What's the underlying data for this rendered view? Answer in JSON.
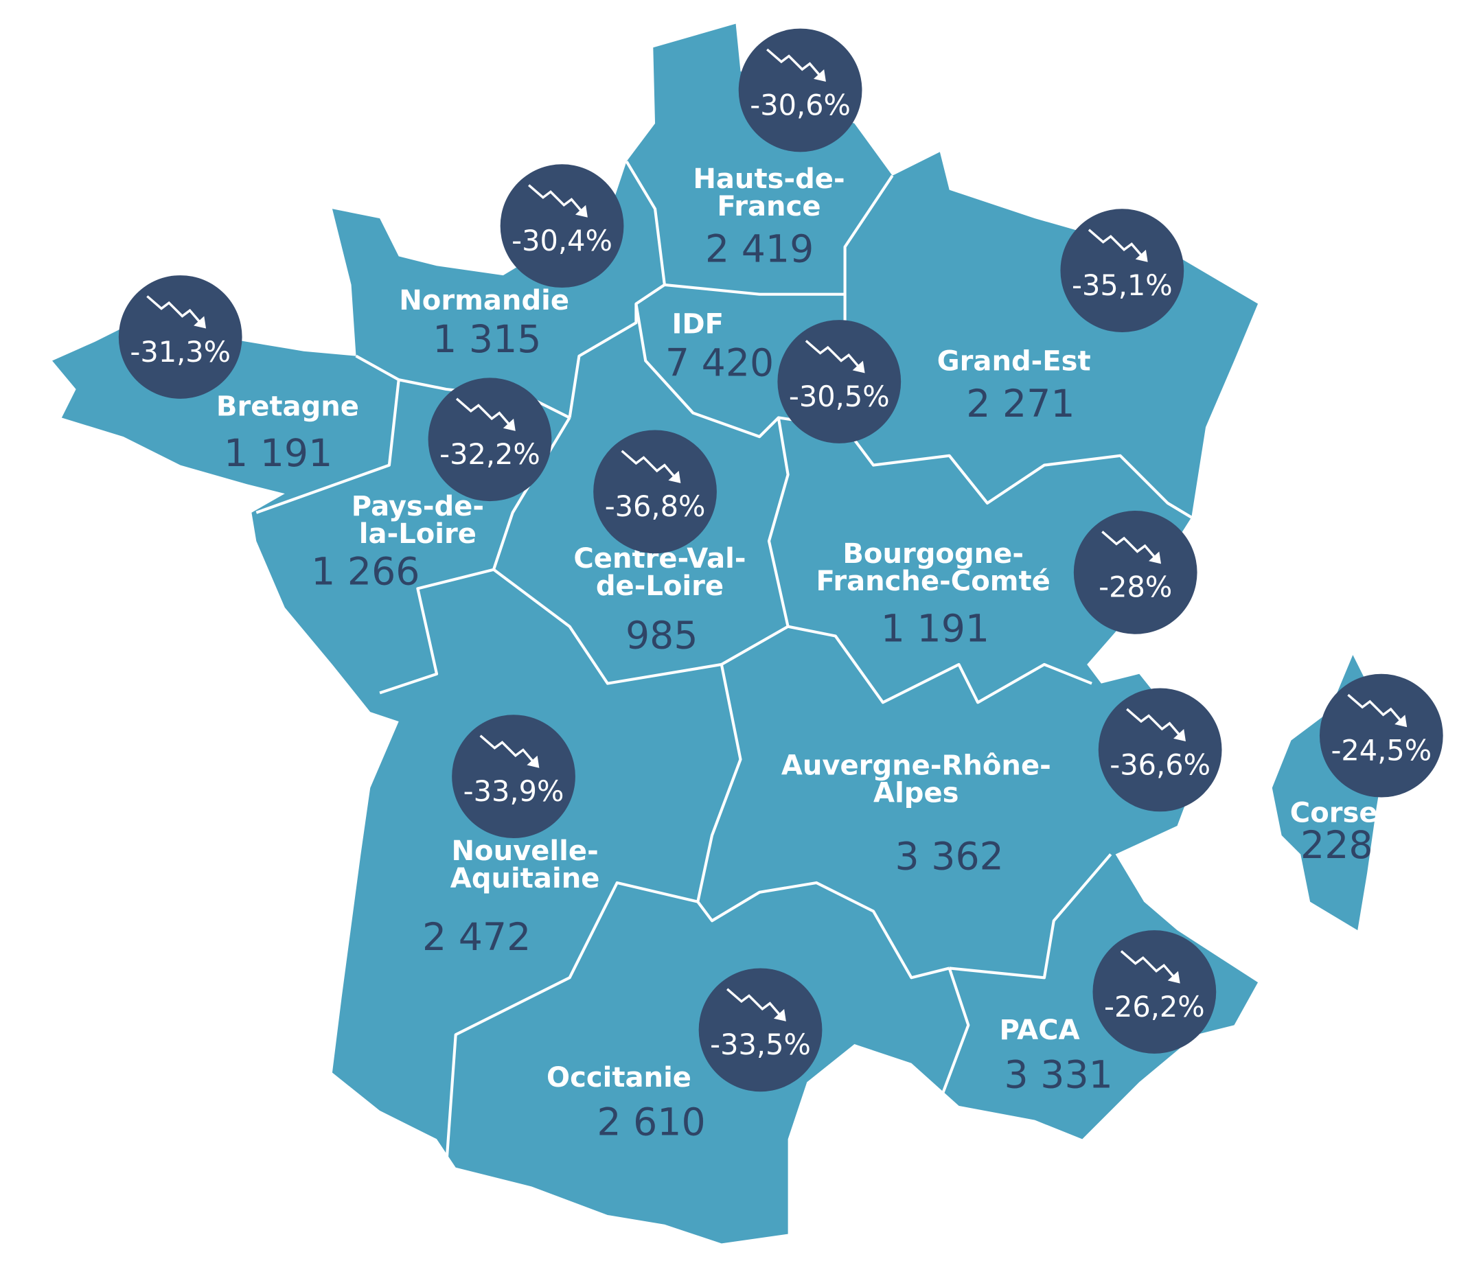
{
  "regions": [
    {
      "name_lines": [
        "Hauts-de-",
        "France"
      ],
      "value": "2 419",
      "change": "-30,6%"
    },
    {
      "name_lines": [
        "Normandie"
      ],
      "value": "1 315",
      "change": "-30,4%"
    },
    {
      "name_lines": [
        "Bretagne"
      ],
      "value": "1 191",
      "change": "-31,3%"
    },
    {
      "name_lines": [
        "Pays-de-",
        "la-Loire"
      ],
      "value": "1 266",
      "change": "-32,2%"
    },
    {
      "name_lines": [
        "IDF"
      ],
      "value": "7 420",
      "change": "-30,5%"
    },
    {
      "name_lines": [
        "Centre-Val-",
        "de-Loire"
      ],
      "value": "985",
      "change": "-36,8%"
    },
    {
      "name_lines": [
        "Grand-Est"
      ],
      "value": "2 271",
      "change": "-35,1%"
    },
    {
      "name_lines": [
        "Bourgogne-",
        "Franche-Comté"
      ],
      "value": "1 191",
      "change": "-28%"
    },
    {
      "name_lines": [
        "Nouvelle-",
        "Aquitaine"
      ],
      "value": "2 472",
      "change": "-33,9%"
    },
    {
      "name_lines": [
        "Auvergne-Rhône-",
        "Alpes"
      ],
      "value": "3 362",
      "change": "-36,6%"
    },
    {
      "name_lines": [
        "Occitanie"
      ],
      "value": "2 610",
      "change": "-33,5%"
    },
    {
      "name_lines": [
        "PACA"
      ],
      "value": "3 331",
      "change": "-26,2%"
    },
    {
      "name_lines": [
        "Corse"
      ],
      "value": "228",
      "change": "-24,5%"
    }
  ]
}
